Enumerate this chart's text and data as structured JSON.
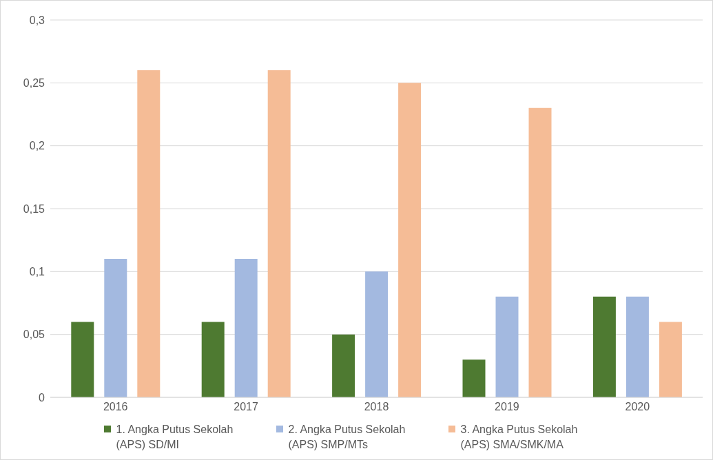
{
  "chart_data": {
    "type": "bar",
    "categories": [
      "2016",
      "2017",
      "2018",
      "2019",
      "2020"
    ],
    "series": [
      {
        "name": "1. Angka Putus Sekolah (APS) SD/MI",
        "color": "#4e7a31",
        "values": [
          0.06,
          0.06,
          0.05,
          0.03,
          0.08
        ]
      },
      {
        "name": "2. Angka Putus Sekolah (APS) SMP/MTs",
        "color": "#a3b9e0",
        "values": [
          0.11,
          0.11,
          0.1,
          0.08,
          0.08
        ]
      },
      {
        "name": "3. Angka Putus Sekolah (APS) SMA/SMK/MA",
        "color": "#f5bc96",
        "values": [
          0.26,
          0.26,
          0.25,
          0.23,
          0.06
        ]
      }
    ],
    "ylim": [
      0,
      0.3
    ],
    "yticks": [
      0,
      {
        "value": 0.05,
        "label": "0,05"
      },
      {
        "value": 0.1,
        "label": "0,1"
      },
      {
        "value": 0.15,
        "label": "0,15"
      },
      {
        "value": 0.2,
        "label": "0,2"
      },
      {
        "value": 0.25,
        "label": "0,25"
      },
      {
        "value": 0.3,
        "label": "0,3"
      }
    ],
    "grid": "y",
    "legend": "bottom"
  }
}
